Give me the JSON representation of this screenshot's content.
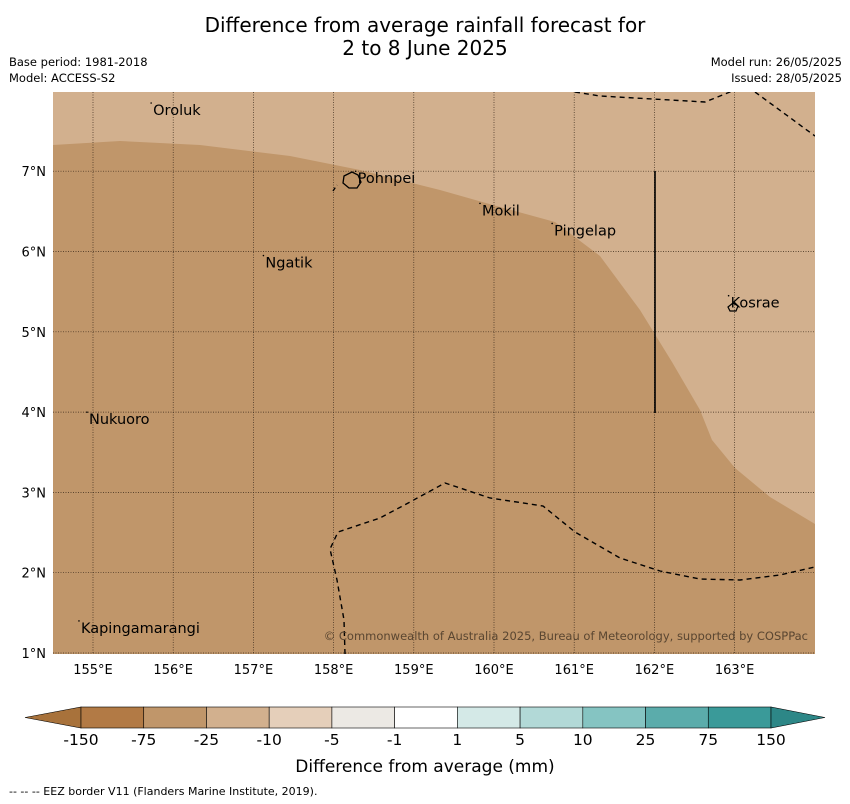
{
  "header": {
    "title_line1": "Difference from average rainfall forecast for",
    "title_line2": "2 to 8 June 2025",
    "base_period": "Base period: 1981-2018",
    "model": "Model: ACCESS-S2",
    "model_run": "Model run: 26/05/2025",
    "issued": "Issued: 28/05/2025"
  },
  "map": {
    "lon_ticks": [
      "155°E",
      "156°E",
      "157°E",
      "158°E",
      "159°E",
      "160°E",
      "161°E",
      "162°E",
      "163°E"
    ],
    "lat_ticks": [
      "1°N",
      "2°N",
      "3°N",
      "4°N",
      "5°N",
      "6°N",
      "7°N"
    ],
    "places": [
      {
        "name": "Oroluk",
        "lon": 155.75,
        "lat": 7.7
      },
      {
        "name": "Pohnpei",
        "lon": 158.3,
        "lat": 6.85
      },
      {
        "name": "Mokil",
        "lon": 159.85,
        "lat": 6.45
      },
      {
        "name": "Pingelap",
        "lon": 160.75,
        "lat": 6.2
      },
      {
        "name": "Ngatik",
        "lon": 157.15,
        "lat": 5.8
      },
      {
        "name": "Kosrae",
        "lon": 162.95,
        "lat": 5.3
      },
      {
        "name": "Nukuoro",
        "lon": 154.95,
        "lat": 3.85
      },
      {
        "name": "Kapingamarangi",
        "lon": 154.85,
        "lat": 1.25
      }
    ],
    "copyright": "© Commonwealth of Australia 2025, Bureau of Meteorology, supported by COSPPac",
    "colors": {
      "drier_-75_-25": "#c0966a",
      "drier_-25_-10": "#d2b08e",
      "eez": "#000000"
    }
  },
  "colorbar": {
    "labels": [
      "-150",
      "-75",
      "-25",
      "-10",
      "-5",
      "-1",
      "1",
      "5",
      "10",
      "25",
      "75",
      "150"
    ],
    "colors": [
      "#a8723b",
      "#b27a45",
      "#c0966a",
      "#d2b08e",
      "#e5cfba",
      "#ece9e4",
      "#ffffff",
      "#d4e9e7",
      "#b2d9d7",
      "#85c4c2",
      "#5bacab",
      "#3a9a99",
      "#2d8787"
    ],
    "title": "Difference from average (mm)"
  },
  "footnote": "--  --  -- EEZ border V11 (Flanders Marine Institute, 2019)."
}
